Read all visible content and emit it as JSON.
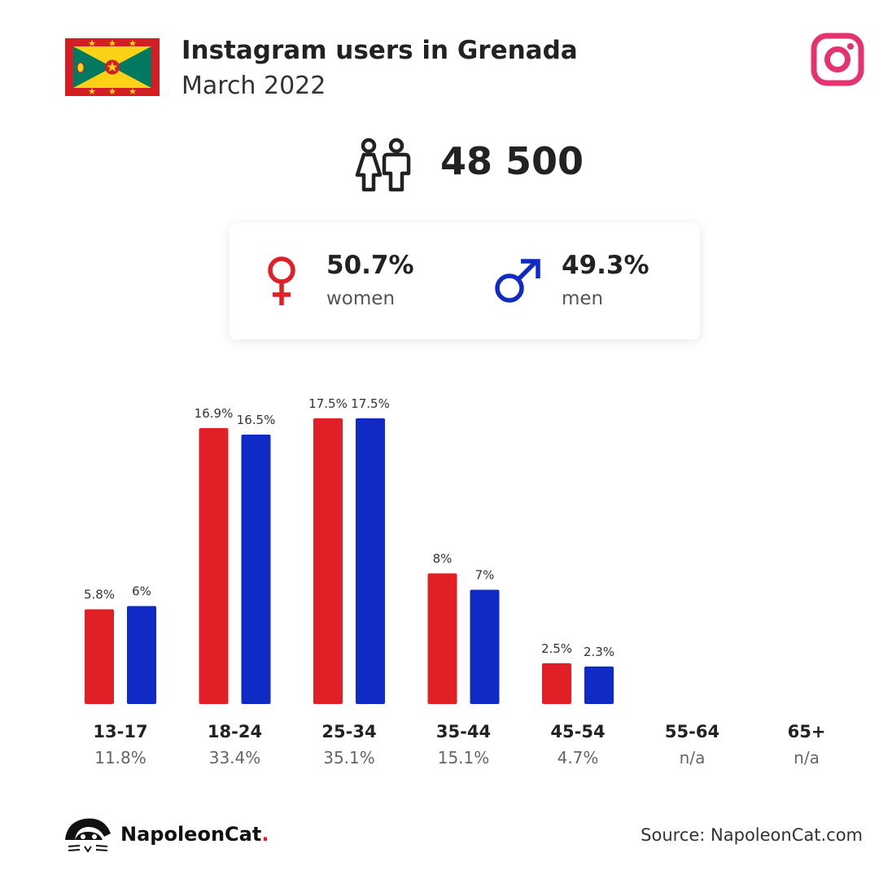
{
  "header": {
    "title": "Instagram users in Grenada",
    "subtitle": "March 2022"
  },
  "icons": {
    "flag": "grenada-flag-icon",
    "instagram": "instagram-icon",
    "people": "people-icon",
    "female": "female-symbol-icon",
    "male": "male-symbol-icon",
    "logo": "napoleoncat-logo"
  },
  "summary": {
    "total_users": "48 500"
  },
  "gender": {
    "women_pct": "50.7%",
    "women_label": "women",
    "men_pct": "49.3%",
    "men_label": "men"
  },
  "colors": {
    "women": "#e01f26",
    "men": "#0f2bc4",
    "instagram": "#e4336f",
    "text": "#222222"
  },
  "chart_data": {
    "type": "bar",
    "categories": [
      "13-17",
      "18-24",
      "25-34",
      "35-44",
      "45-54",
      "55-64",
      "65+"
    ],
    "category_totals": [
      "11.8%",
      "33.4%",
      "35.1%",
      "15.1%",
      "4.7%",
      "n/a",
      "n/a"
    ],
    "series": [
      {
        "name": "women",
        "color": "#e01f26",
        "values": [
          5.8,
          16.9,
          17.5,
          8,
          2.5,
          null,
          null
        ],
        "labels": [
          "5.8%",
          "16.9%",
          "17.5%",
          "8%",
          "2.5%",
          "",
          ""
        ]
      },
      {
        "name": "men",
        "color": "#0f2bc4",
        "values": [
          6,
          16.5,
          17.5,
          7,
          2.3,
          null,
          null
        ],
        "labels": [
          "6%",
          "16.5%",
          "17.5%",
          "7%",
          "2.3%",
          "",
          ""
        ]
      }
    ],
    "ylim": [
      0,
      17.5
    ],
    "grid": false,
    "legend": "none"
  },
  "footer": {
    "brand_name": "NapoleonCat",
    "brand_dot": ".",
    "source": "Source: NapoleonCat.com"
  }
}
